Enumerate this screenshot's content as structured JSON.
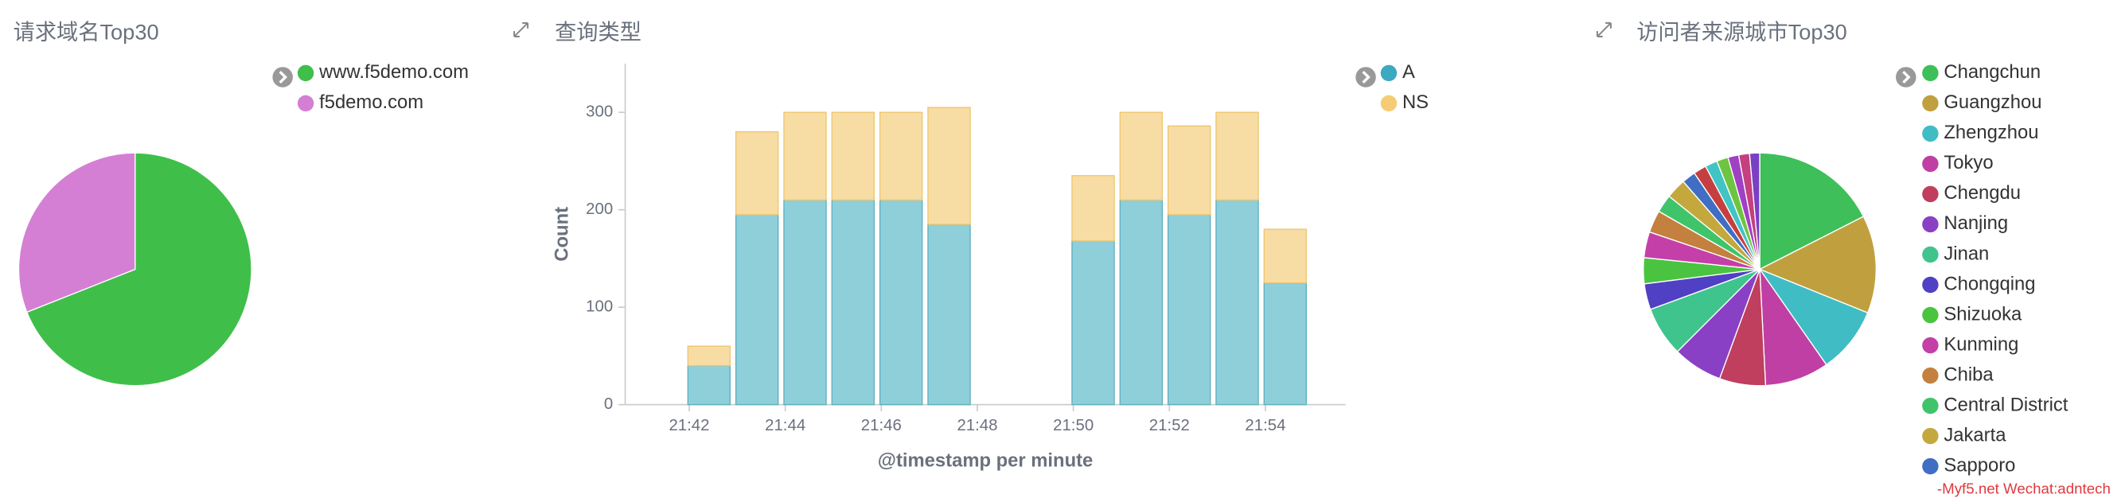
{
  "chart_data": [
    {
      "type": "pie",
      "title": "请求域名Top30",
      "categories": [
        "www.f5demo.com",
        "f5demo.com"
      ],
      "values": [
        69,
        31
      ],
      "colors": [
        "#3fbf4a",
        "#d47fd4"
      ]
    },
    {
      "type": "bar",
      "title": "查询类型",
      "x_label": "@timestamp per minute",
      "y_label": "Count",
      "x": [
        "21:42",
        "21:43",
        "21:44",
        "21:45",
        "21:46",
        "21:47",
        "21:50",
        "21:51",
        "21:52",
        "21:53",
        "21:54"
      ],
      "series": [
        {
          "name": "A",
          "color": "#8ecfd9",
          "values": [
            40,
            195,
            210,
            210,
            210,
            185,
            168,
            210,
            195,
            210,
            125
          ]
        },
        {
          "name": "NS",
          "color": "#f7dca4",
          "values": [
            20,
            85,
            90,
            90,
            90,
            120,
            67,
            90,
            91,
            90,
            55
          ]
        }
      ],
      "stacked": true,
      "xlim": [
        "21:40:40",
        "21:55:40"
      ],
      "xticks": [
        "21:42",
        "21:44",
        "21:46",
        "21:48",
        "21:50",
        "21:52",
        "21:54"
      ],
      "ylim": [
        0,
        350
      ],
      "yticks": [
        0,
        100,
        200,
        300
      ],
      "grid": false
    },
    {
      "type": "pie",
      "title": "访问者来源城市Top30",
      "categories": [
        "Changchun",
        "Guangzhou",
        "Zhengzhou",
        "Tokyo",
        "Chengdu",
        "Nanjing",
        "Jinan",
        "Chongqing",
        "Shizuoka",
        "Kunming",
        "Chiba",
        "Central District",
        "Jakarta",
        "Sapporo",
        null,
        null,
        null,
        null,
        null,
        null
      ],
      "values": [
        17.5,
        13.6,
        9.2,
        8.9,
        6.4,
        6.9,
        6.9,
        3.6,
        3.6,
        3.6,
        3.1,
        2.5,
        2.8,
        1.9,
        1.8,
        1.7,
        1.6,
        1.5,
        1.5,
        1.4
      ],
      "colors": [
        "#3ebf5a",
        "#c0a03e",
        "#40bcc4",
        "#c03fa4",
        "#c03e5e",
        "#8a40c4",
        "#40c48e",
        "#5040c4",
        "#4ac440",
        "#c440a8",
        "#c4803e",
        "#40c46a",
        "#c4a83e",
        "#406ec4",
        "#c44040",
        "#40c4c4",
        "#6ec440",
        "#a040c4",
        "#c44080",
        "#7a40c4"
      ]
    }
  ],
  "watermark": "-Myf5.net Wechat:adntech"
}
